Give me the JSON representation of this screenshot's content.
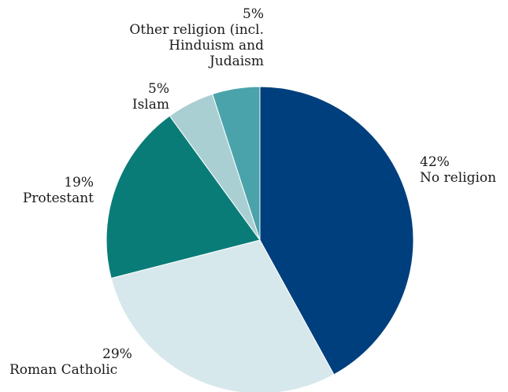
{
  "chart_data": {
    "type": "pie",
    "title": "",
    "start": "12 o'clock",
    "direction": "clockwise",
    "legend": "none (direct labels)",
    "slices": [
      {
        "label": "No religion",
        "value": 42,
        "value_label": "42%",
        "color": "#003f7d"
      },
      {
        "label": "Roman Catholic",
        "value": 29,
        "value_label": "29%",
        "color": "#d7e8ec"
      },
      {
        "label": "Protestant",
        "value": 19,
        "value_label": "19%",
        "color": "#0a7c78"
      },
      {
        "label": "Islam",
        "value": 5,
        "value_label": "5%",
        "color": "#a9cfd2"
      },
      {
        "label_lines": [
          "Other religion (incl.",
          "Hinduism and",
          "Judaism"
        ],
        "value": 5,
        "value_label": "5%",
        "color": "#4aa3ab"
      }
    ]
  }
}
